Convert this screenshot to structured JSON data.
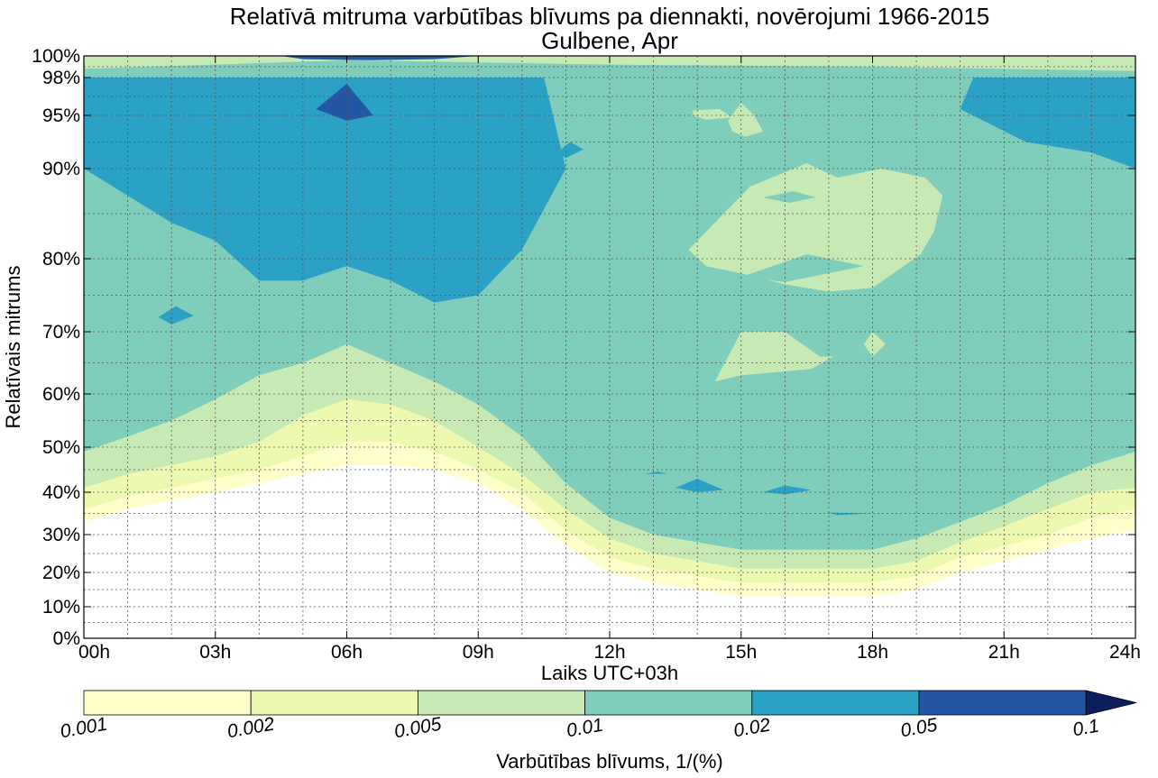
{
  "chart_data": {
    "type": "contour",
    "title": "Relatīvā mitruma varbūtības blīvums pa diennakti, novērojumi 1966-2015",
    "subtitle": "Gulbene, Apr",
    "xlabel": "Laiks UTC+03h",
    "ylabel": "Relatīvais mitrums",
    "xlim": [
      0,
      24
    ],
    "ylim": [
      0,
      100
    ],
    "y_scale": "nonlinear (stretched towards 100%)",
    "grid": true,
    "x_ticks": [
      "00h",
      "03h",
      "06h",
      "09h",
      "12h",
      "15h",
      "18h",
      "21h",
      "24h"
    ],
    "x_tick_values": [
      0,
      3,
      6,
      9,
      12,
      15,
      18,
      21,
      24
    ],
    "y_ticks": [
      "0%",
      "10%",
      "20%",
      "30%",
      "40%",
      "50%",
      "60%",
      "70%",
      "80%",
      "90%",
      "95%",
      "98%",
      "100%"
    ],
    "y_tick_values": [
      0,
      10,
      20,
      30,
      40,
      50,
      60,
      70,
      80,
      90,
      95,
      98,
      100
    ],
    "colorbar": {
      "label": "Varbūtības blīvums, 1/(%)",
      "levels": [
        "0.001",
        "0.002",
        "0.005",
        "0.01",
        "0.02",
        "0.05",
        "0.1"
      ],
      "colors": [
        "#ffffcc",
        "#edf8b1",
        "#c7e9b4",
        "#7fcdbb",
        "#2ca1c6",
        "#2357a6",
        "#0c1e5b"
      ],
      "extend": "max"
    },
    "hour_x": [
      0,
      1,
      2,
      3,
      4,
      5,
      6,
      7,
      8,
      9,
      10,
      11,
      12,
      13,
      14,
      15,
      16,
      17,
      18,
      19,
      20,
      21,
      22,
      23,
      24
    ],
    "level_boundaries_rh": {
      "0.001": [
        33,
        36,
        38,
        40,
        42,
        44,
        46,
        46,
        45,
        42,
        36,
        27,
        20,
        17,
        15,
        13,
        13,
        13,
        13,
        15,
        20,
        23,
        26,
        29,
        31
      ],
      "0.002": [
        36,
        39,
        41,
        43,
        45,
        48,
        51,
        51,
        49,
        45,
        40,
        31,
        24,
        21,
        19,
        17,
        17,
        17,
        17,
        19,
        24,
        27,
        30,
        34,
        36
      ],
      "0.005": [
        41,
        44,
        46,
        48,
        51,
        56,
        59,
        58,
        55,
        50,
        44,
        36,
        29,
        25,
        23,
        21,
        21,
        21,
        21,
        23,
        28,
        32,
        36,
        40,
        41
      ],
      "0.01": [
        49,
        52,
        55,
        59,
        63,
        65,
        68,
        65,
        62,
        58,
        52,
        42,
        34,
        30,
        28,
        26,
        26,
        26,
        26,
        29,
        33,
        37,
        42,
        46,
        49
      ],
      "0.02_upper_band": [
        90,
        87,
        84,
        82,
        77,
        77,
        79,
        77,
        74,
        75,
        81,
        90,
        94,
        95,
        95,
        95,
        95,
        95,
        95,
        95,
        95,
        94,
        94,
        93,
        90
      ],
      "0.02_lower_edge_afternoon": [
        null,
        null,
        null,
        null,
        null,
        null,
        null,
        null,
        null,
        null,
        null,
        null,
        null,
        null,
        null,
        null,
        null,
        null,
        null,
        null,
        null,
        97,
        96,
        95,
        93
      ]
    },
    "light_patch_afternoon_rh": [
      75,
      90
    ],
    "top_band_rh": [
      98,
      100
    ]
  }
}
